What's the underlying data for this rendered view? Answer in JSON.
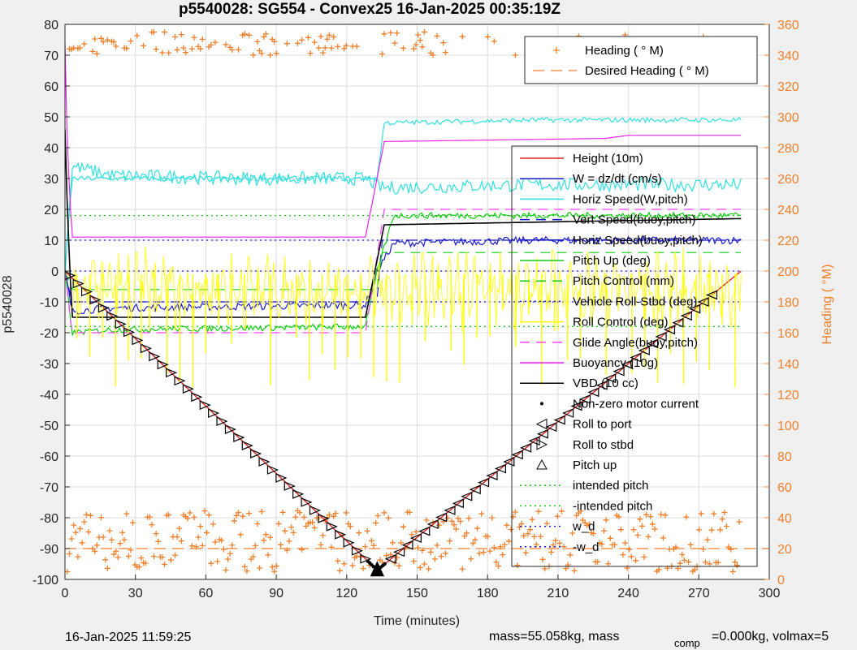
{
  "chart_data": {
    "type": "line",
    "title": "p5540028: SG554 - Convex25 16-Jan-2025 00:35:19Z",
    "xlabel": "Time (minutes)",
    "ylabel": "p5540028",
    "y2label": "Heading (  °M)",
    "xlim": [
      0,
      300
    ],
    "ylim": [
      -100,
      80
    ],
    "y2lim": [
      0,
      360
    ],
    "xticks": [
      "0",
      "30",
      "60",
      "90",
      "120",
      "150",
      "180",
      "210",
      "240",
      "270",
      "300"
    ],
    "yticks": [
      "80",
      "70",
      "60",
      "50",
      "40",
      "30",
      "20",
      "10",
      "0",
      "-10",
      "-20",
      "-30",
      "-40",
      "-50",
      "-60",
      "-70",
      "-80",
      "-90",
      "-100"
    ],
    "y2ticks": [
      "360",
      "340",
      "320",
      "300",
      "280",
      "260",
      "240",
      "220",
      "200",
      "180",
      "160",
      "140",
      "120",
      "100",
      "80",
      "60",
      "40",
      "20",
      "0"
    ],
    "grid": true,
    "legend_heading": {
      "placement": "top-right",
      "entries": [
        "Heading (  ° M)",
        "Desired Heading (  ° M)"
      ]
    },
    "legend_main": {
      "placement": "right",
      "entries": [
        "Height (10m)",
        "W = dz/dt (cm/s)",
        "Horiz Speed(W,pitch)",
        "Vert Speed(buoy,pitch)",
        "Horiz Speed(buoy,pitch)",
        "Pitch Up (deg)",
        "Pitch Control (mm)",
        "Vehicle Roll-Stbd (deg)",
        "Roll Control (deg)",
        "Glide Angle(buoy,pitch)",
        "Buoyancy (10g)",
        "VBD (10 cc)",
        "Non-zero motor current",
        "Roll to port",
        "Roll to stbd",
        "Pitch up",
        "intended pitch",
        "-intended pitch",
        "w_d",
        "-w_d"
      ]
    },
    "series": [
      {
        "name": "Height (10m)",
        "color": "#e02020",
        "x": [
          0,
          133,
          288
        ],
        "y": [
          0,
          -97,
          0
        ]
      },
      {
        "name": "W = dz/dt (cm/s)",
        "color": "#1a1acc",
        "x": [
          0,
          3,
          20,
          128,
          133,
          140,
          200,
          288
        ],
        "y": [
          0,
          -13,
          -12,
          -11,
          0,
          9,
          10,
          10
        ]
      },
      {
        "name": "Horiz Speed(W,pitch)",
        "color": "#30e0e0",
        "x": [
          0,
          3,
          20,
          80,
          128,
          135,
          200,
          288
        ],
        "y": [
          0,
          34,
          31,
          30,
          30,
          27,
          28,
          28
        ]
      },
      {
        "name": "Vert Speed(buoy,pitch)",
        "color": "#1a1acc",
        "x": [
          0,
          3,
          133,
          135,
          288
        ],
        "y": [
          0,
          -10,
          -10,
          10,
          10
        ]
      },
      {
        "name": "Horiz Speed(buoy,pitch)",
        "color": "#30e0e0",
        "x": [
          0,
          3,
          133,
          136,
          200,
          288
        ],
        "y": [
          0,
          30,
          30,
          48,
          49,
          49
        ]
      },
      {
        "name": "Pitch Up (deg)",
        "color": "#10cc10",
        "x": [
          0,
          3,
          20,
          128,
          133,
          140,
          288
        ],
        "y": [
          0,
          -20,
          -19,
          -18,
          0,
          18,
          18
        ]
      },
      {
        "name": "Pitch Control (mm)",
        "color": "#10cc10",
        "x": [
          0,
          3,
          133,
          135,
          288
        ],
        "y": [
          0,
          -6,
          -6,
          6,
          6
        ]
      },
      {
        "name": "Vehicle Roll-Stbd (deg)",
        "color": "#1a1acc",
        "x": [
          0,
          288
        ],
        "y": [
          0,
          0
        ]
      },
      {
        "name": "Roll Control (deg)",
        "color": "#ffff00",
        "x": [
          0,
          288
        ],
        "y": [
          0,
          0
        ]
      },
      {
        "name": "Glide Angle(buoy,pitch)",
        "color": "#ff40ff",
        "x": [
          0,
          3,
          128,
          136,
          230,
          288
        ],
        "y": [
          0,
          -20,
          -20,
          20,
          20,
          20
        ]
      },
      {
        "name": "Buoyancy (10g)",
        "color": "#ee22ee",
        "x": [
          0,
          1,
          3,
          128,
          136,
          230,
          240,
          288
        ],
        "y": [
          74,
          40,
          11,
          11,
          42,
          43,
          44,
          44
        ]
      },
      {
        "name": "VBD (10 cc)",
        "color": "#000000",
        "x": [
          0,
          1,
          3,
          128,
          136,
          288
        ],
        "y": [
          46,
          20,
          -15,
          -15,
          15,
          17
        ]
      },
      {
        "name": "intended pitch",
        "color": "#10cc10",
        "x": [
          0,
          288
        ],
        "y": [
          18,
          18
        ]
      },
      {
        "name": "-intended pitch",
        "color": "#10cc10",
        "x": [
          0,
          288
        ],
        "y": [
          -18,
          -18
        ]
      },
      {
        "name": "w_d",
        "color": "#1a1acc",
        "x": [
          0,
          288
        ],
        "y": [
          10,
          10
        ]
      },
      {
        "name": "-w_d",
        "color": "#1a1acc",
        "x": [
          0,
          288
        ],
        "y": [
          -10,
          -10
        ]
      }
    ],
    "heading_band_low": {
      "center_deg": 25,
      "spread_deg": 20
    },
    "heading_band_high": {
      "center_deg": 355,
      "spread_deg": 15
    },
    "desired_heading_deg": 20
  },
  "footer": {
    "timestamp": "16-Jan-2025 11:59:25",
    "mass_text": "mass=55.058kg, mass",
    "comp_sub": "comp",
    "comp_text": "=0.000kg, volmax=5"
  },
  "colors": {
    "heading": "#f07f2a",
    "axis": "#262626",
    "grid": "#dcdcdc"
  }
}
